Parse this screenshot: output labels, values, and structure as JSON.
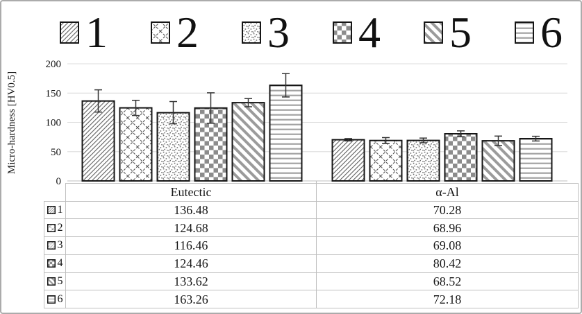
{
  "frame": {
    "background": "#ffffff",
    "border_color": "#ababab"
  },
  "colors": {
    "bar_outline": "#161616",
    "grid_line": "#dcdcdc",
    "axis_line": "#bfbfbf",
    "table_border": "#bfbfbf",
    "pattern_gray": "#8c8c8c",
    "text": "#161616"
  },
  "legend": {
    "position": "top",
    "items": [
      {
        "label": "1",
        "icon": "diagonal-hatch"
      },
      {
        "label": "2",
        "icon": "diamond-lattice"
      },
      {
        "label": "3",
        "icon": "dots"
      },
      {
        "label": "4",
        "icon": "checkerboard"
      },
      {
        "label": "5",
        "icon": "diagonal-stripes"
      },
      {
        "label": "6",
        "icon": "horizontal-lines"
      }
    ]
  },
  "chart_data": {
    "type": "bar",
    "title": "",
    "categories": [
      "Eutectic",
      "α-Al"
    ],
    "series": [
      {
        "name": "1",
        "pattern": "diagonal-hatch",
        "values": [
          136.48,
          70.28
        ],
        "errors": [
          19,
          2
        ]
      },
      {
        "name": "2",
        "pattern": "diamond-lattice",
        "values": [
          124.68,
          68.96
        ],
        "errors": [
          13,
          5
        ]
      },
      {
        "name": "3",
        "pattern": "dots",
        "values": [
          116.46,
          69.08
        ],
        "errors": [
          19,
          4
        ]
      },
      {
        "name": "4",
        "pattern": "checkerboard",
        "values": [
          124.46,
          80.42
        ],
        "errors": [
          26,
          5
        ]
      },
      {
        "name": "5",
        "pattern": "diagonal-stripes",
        "values": [
          133.62,
          68.52
        ],
        "errors": [
          7,
          8
        ]
      },
      {
        "name": "6",
        "pattern": "horizontal-lines",
        "values": [
          163.26,
          72.18
        ],
        "errors": [
          20,
          4
        ]
      }
    ],
    "xlabel": "",
    "ylabel": "Micro-hardness [HV0.5]",
    "ylim": [
      0,
      200
    ],
    "yticks": [
      0,
      50,
      100,
      150,
      200
    ],
    "grid": true,
    "error_bars": true,
    "legend_position": "top",
    "data_table_shown": true
  },
  "table": {
    "corner": "",
    "columns": [
      "Eutectic",
      "α-Al"
    ],
    "rows": [
      {
        "key": "1",
        "icon": "diagonal-hatch",
        "values": [
          "136.48",
          "70.28"
        ]
      },
      {
        "key": "2",
        "icon": "diamond-lattice",
        "values": [
          "124.68",
          "68.96"
        ]
      },
      {
        "key": "3",
        "icon": "dots",
        "values": [
          "116.46",
          "69.08"
        ]
      },
      {
        "key": "4",
        "icon": "checkerboard",
        "values": [
          "124.46",
          "80.42"
        ]
      },
      {
        "key": "5",
        "icon": "diagonal-stripes",
        "values": [
          "133.62",
          "68.52"
        ]
      },
      {
        "key": "6",
        "icon": "horizontal-lines",
        "values": [
          "163.26",
          "72.18"
        ]
      }
    ]
  }
}
